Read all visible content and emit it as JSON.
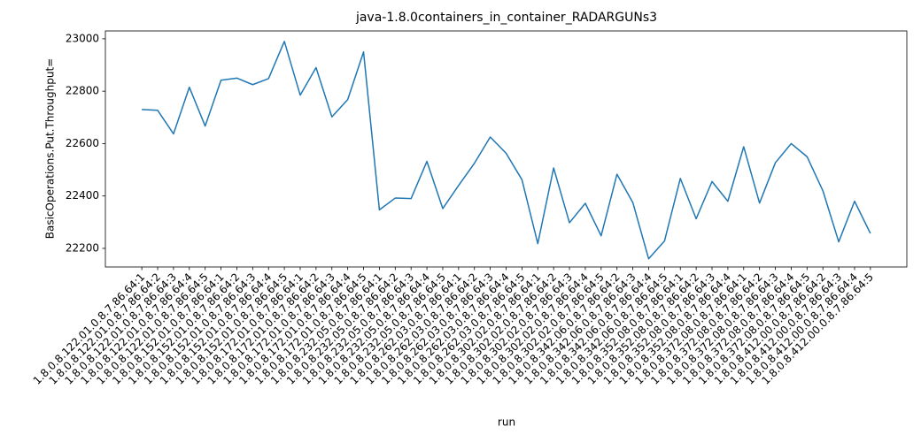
{
  "chart_data": {
    "type": "line",
    "title": "java-1.8.0containers_in_container_RADARGUNs3",
    "x_label": "run",
    "y_label": "BasicOperations.Put.Throughput=",
    "categories": [
      "1.8.0.8.122.01.0.8.7.86.64:1",
      "1.8.0.8.122.01.0.8.7.86.64:2",
      "1.8.0.8.122.01.0.8.7.86.64:3",
      "1.8.0.8.122.01.0.8.7.86.64:4",
      "1.8.0.8.122.01.0.8.7.86.64:5",
      "1.8.0.8.152.01.0.8.7.86.64:1",
      "1.8.0.8.152.01.0.8.7.86.64:2",
      "1.8.0.8.152.01.0.8.7.86.64:3",
      "1.8.0.8.152.01.0.8.7.86.64:4",
      "1.8.0.8.152.01.0.8.7.86.64:5",
      "1.8.0.8.172.01.0.8.7.86.64:1",
      "1.8.0.8.172.01.0.8.7.86.64:2",
      "1.8.0.8.172.01.0.8.7.86.64:3",
      "1.8.0.8.172.01.0.8.7.86.64:4",
      "1.8.0.8.172.01.0.8.7.86.64:5",
      "1.8.0.8.232.05.0.8.7.86.64:1",
      "1.8.0.8.232.05.0.8.7.86.64:2",
      "1.8.0.8.232.05.0.8.7.86.64:3",
      "1.8.0.8.232.05.0.8.7.86.64:4",
      "1.8.0.8.232.05.0.8.7.86.64:5",
      "1.8.0.8.262.03.0.8.7.86.64:1",
      "1.8.0.8.262.03.0.8.7.86.64:2",
      "1.8.0.8.262.03.0.8.7.86.64:3",
      "1.8.0.8.262.03.0.8.7.86.64:4",
      "1.8.0.8.262.03.0.8.7.86.64:5",
      "1.8.0.8.302.02.0.8.7.86.64:1",
      "1.8.0.8.302.02.0.8.7.86.64:2",
      "1.8.0.8.302.02.0.8.7.86.64:3",
      "1.8.0.8.302.02.0.8.7.86.64:4",
      "1.8.0.8.302.02.0.8.7.86.64:5",
      "1.8.0.8.342.06.0.8.7.86.64:2",
      "1.8.0.8.342.06.0.8.7.86.64:3",
      "1.8.0.8.342.06.0.8.7.86.64:4",
      "1.8.0.8.342.06.0.8.7.86.64:5",
      "1.8.0.8.352.08.0.8.7.86.64:1",
      "1.8.0.8.352.08.0.8.7.86.64:2",
      "1.8.0.8.352.08.0.8.7.86.64:3",
      "1.8.0.8.352.08.0.8.7.86.64:4",
      "1.8.0.8.372.08.0.8.7.86.64:1",
      "1.8.0.8.372.08.0.8.7.86.64:2",
      "1.8.0.8.372.08.0.8.7.86.64:3",
      "1.8.0.8.372.08.0.8.7.86.64:4",
      "1.8.0.8.372.08.0.8.7.86.64:5",
      "1.8.0.8.412.00.0.8.7.86.64:2",
      "1.8.0.8.412.00.0.8.7.86.64:3",
      "1.8.0.8.412.00.0.8.7.86.64:4",
      "1.8.0.8.412.00.0.8.7.86.64:5"
    ],
    "values": [
      22730,
      22727,
      22637,
      22815,
      22667,
      22842,
      22850,
      22825,
      22848,
      22990,
      22785,
      22890,
      22702,
      22768,
      22950,
      22347,
      22392,
      22390,
      22532,
      22352,
      22440,
      22525,
      22625,
      22563,
      22462,
      22218,
      22507,
      22298,
      22372,
      22248,
      22483,
      22375,
      22160,
      22228,
      22467,
      22313,
      22455,
      22380,
      22588,
      22373,
      22527,
      22600,
      22550,
      22420,
      22225,
      22380,
      22257
    ],
    "color": "#1f77b4",
    "ylim": [
      22129,
      23030
    ],
    "yticks": [
      22200,
      22400,
      22600,
      22800,
      23000
    ]
  }
}
